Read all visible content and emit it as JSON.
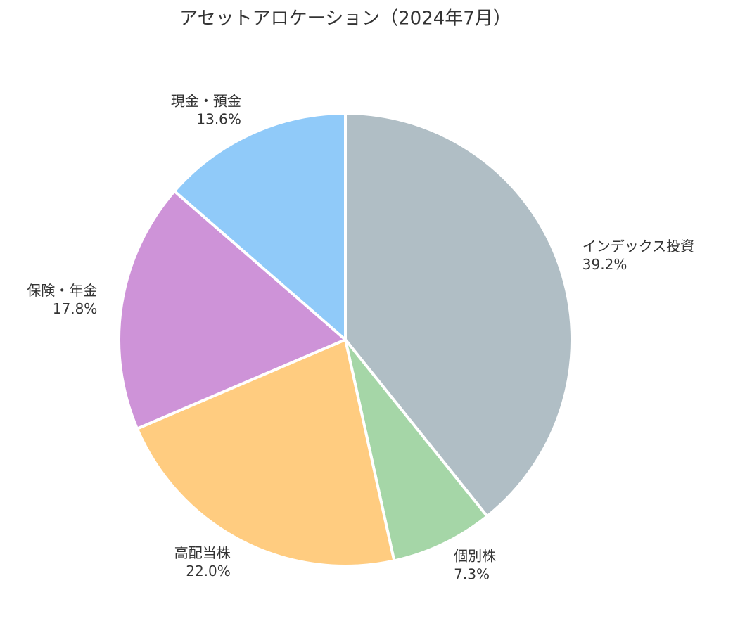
{
  "chart_data": {
    "type": "pie",
    "title": "アセットアロケーション（2024年7月）",
    "categories": [
      "インデックス投資",
      "個別株",
      "高配当株",
      "保険・年金",
      "現金・預金"
    ],
    "values": [
      39.2,
      7.3,
      22.0,
      17.8,
      13.6
    ],
    "value_labels": [
      "39.2%",
      "7.3%",
      "22.0%",
      "17.8%",
      "13.6%"
    ],
    "colors": [
      "#b0bec5",
      "#a5d6a7",
      "#ffcc80",
      "#ce93d8",
      "#90caf9"
    ]
  }
}
